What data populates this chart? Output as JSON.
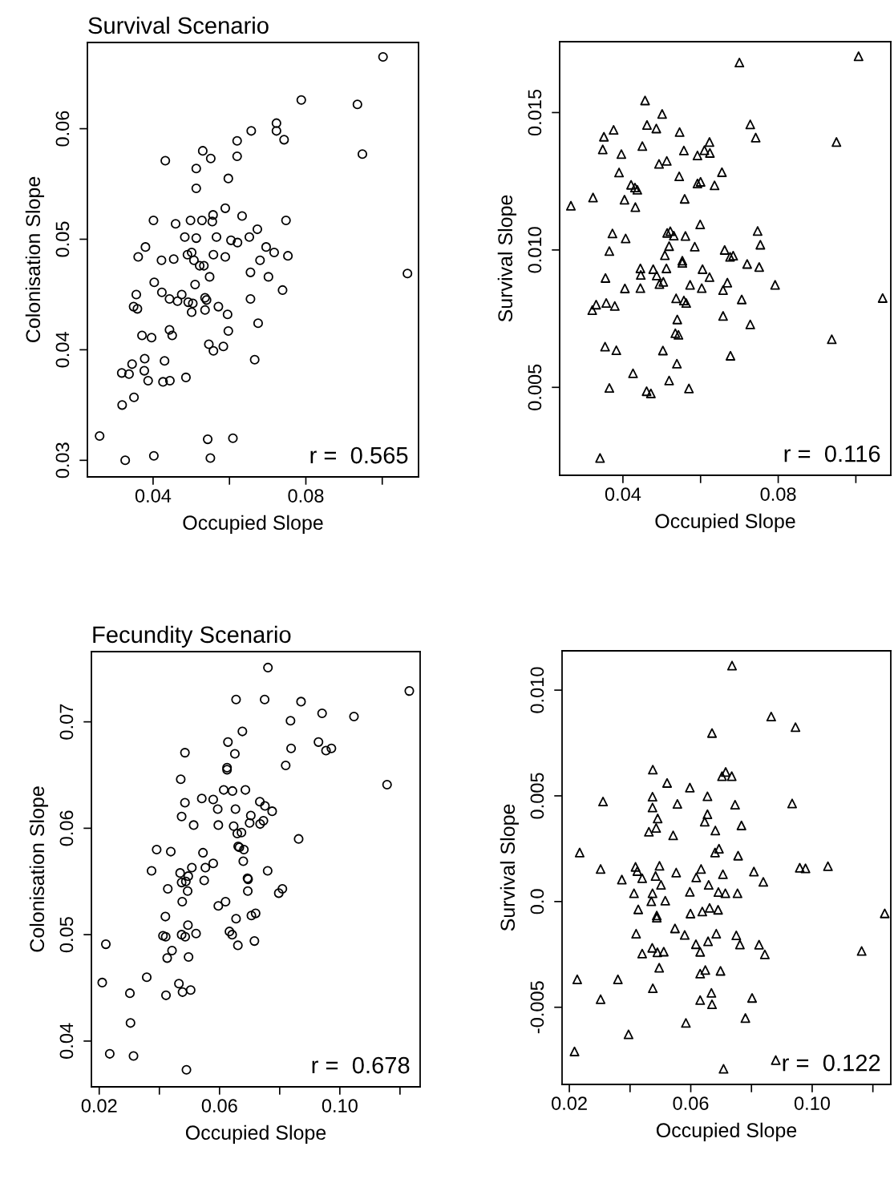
{
  "chart_data": [
    {
      "type": "scatter",
      "title": "Survival Scenario",
      "xlabel": "Occupied Slope",
      "ylabel": "Colonisation Slope",
      "marker": "circle",
      "annotations": [
        "r =  0.565"
      ],
      "xlim": [
        0.0228,
        0.1095
      ],
      "ylim": [
        0.0285,
        0.0678
      ],
      "xticks": [
        {
          "value": 0.04,
          "label": "0.04"
        },
        {
          "value": 0.06,
          "label": null
        },
        {
          "value": 0.08,
          "label": "0.08"
        },
        {
          "value": 0.1,
          "label": null
        }
      ],
      "yticks": [
        {
          "value": 0.03,
          "label": "0.03"
        },
        {
          "value": 0.04,
          "label": "0.04"
        },
        {
          "value": 0.05,
          "label": "0.05"
        },
        {
          "value": 0.06,
          "label": "0.06"
        }
      ],
      "series": [
        {
          "color": "#000000",
          "x": [
            0.1002,
            0.0788,
            0.0935,
            0.0723,
            0.0723,
            0.0657,
            0.0743,
            0.0948,
            0.062,
            0.062,
            0.053,
            0.0551,
            0.0432,
            0.0513,
            0.0597,
            0.0513,
            0.0589,
            0.0633,
            0.0557,
            0.0555,
            0.0528,
            0.0498,
            0.0459,
            0.0401,
            0.0748,
            0.0673,
            0.0652,
            0.0483,
            0.0513,
            0.0566,
            0.0604,
            0.0621,
            0.038,
            0.0696,
            0.0717,
            0.0753,
            0.0361,
            0.0422,
            0.0454,
            0.049,
            0.0501,
            0.0507,
            0.0558,
            0.0589,
            0.0522,
            0.0533,
            0.068,
            0.0655,
            0.0548,
            0.0702,
            0.1066,
            0.0403,
            0.051,
            0.0739,
            0.0356,
            0.0423,
            0.0443,
            0.0464,
            0.0475,
            0.0492,
            0.0504,
            0.0536,
            0.054,
            0.0571,
            0.0655,
            0.0349,
            0.0359,
            0.0501,
            0.0536,
            0.0595,
            0.0675,
            0.0371,
            0.0396,
            0.0443,
            0.045,
            0.0597,
            0.0546,
            0.0558,
            0.0584,
            0.0378,
            0.043,
            0.0666,
            0.0345,
            0.0318,
            0.0337,
            0.0377,
            0.0387,
            0.0426,
            0.0444,
            0.0486,
            0.035,
            0.0319,
            0.026,
            0.0543,
            0.0609,
            0.0327,
            0.0402,
            0.055
          ],
          "values": [
            0.0665,
            0.0626,
            0.0622,
            0.0605,
            0.0598,
            0.0598,
            0.059,
            0.0577,
            0.0589,
            0.0575,
            0.058,
            0.0573,
            0.0571,
            0.0564,
            0.0555,
            0.0546,
            0.0528,
            0.0521,
            0.0522,
            0.0516,
            0.0517,
            0.0517,
            0.0514,
            0.0517,
            0.0517,
            0.0509,
            0.0502,
            0.0502,
            0.0501,
            0.0502,
            0.0499,
            0.0497,
            0.0493,
            0.0493,
            0.0488,
            0.0485,
            0.0484,
            0.0481,
            0.0482,
            0.0486,
            0.0488,
            0.0481,
            0.0486,
            0.0484,
            0.0476,
            0.0476,
            0.0481,
            0.047,
            0.0466,
            0.0466,
            0.0469,
            0.0461,
            0.0459,
            0.0454,
            0.045,
            0.0452,
            0.0446,
            0.0444,
            0.045,
            0.0443,
            0.0442,
            0.0447,
            0.0445,
            0.0439,
            0.0446,
            0.0439,
            0.0437,
            0.0434,
            0.0436,
            0.0432,
            0.0424,
            0.0413,
            0.0411,
            0.0418,
            0.0413,
            0.0417,
            0.0405,
            0.0399,
            0.0403,
            0.0392,
            0.039,
            0.0391,
            0.0387,
            0.0379,
            0.0378,
            0.0381,
            0.0372,
            0.0371,
            0.0372,
            0.0375,
            0.0357,
            0.035,
            0.0322,
            0.0319,
            0.032,
            0.03,
            0.0304,
            0.0302
          ]
        }
      ]
    },
    {
      "type": "scatter",
      "xlabel": "Occupied Slope",
      "ylabel": "Survival Slope",
      "marker": "triangle",
      "annotations": [
        "r =  0.116"
      ],
      "xlim": [
        0.0237,
        0.109
      ],
      "ylim": [
        0.0018,
        0.01758
      ],
      "xticks": [
        {
          "value": 0.04,
          "label": "0.04"
        },
        {
          "value": 0.06,
          "label": null
        },
        {
          "value": 0.08,
          "label": "0.08"
        },
        {
          "value": 0.1,
          "label": null
        }
      ],
      "yticks": [
        {
          "value": 0.005,
          "label": "0.005"
        },
        {
          "value": 0.01,
          "label": "0.010"
        },
        {
          "value": 0.015,
          "label": "0.015"
        }
      ],
      "series": [
        {
          "color": "#000000",
          "x": [
            0.1007,
            0.07,
            0.0457,
            0.0501,
            0.0462,
            0.0486,
            0.0376,
            0.0351,
            0.0546,
            0.0728,
            0.0742,
            0.095,
            0.0623,
            0.0348,
            0.045,
            0.0557,
            0.061,
            0.0624,
            0.0592,
            0.0396,
            0.0513,
            0.0493,
            0.039,
            0.0655,
            0.0545,
            0.0421,
            0.0431,
            0.0437,
            0.0592,
            0.06,
            0.0636,
            0.0323,
            0.0404,
            0.0559,
            0.0266,
            0.0432,
            0.0599,
            0.0373,
            0.0407,
            0.0514,
            0.0522,
            0.0531,
            0.0561,
            0.0747,
            0.0754,
            0.0365,
            0.0519,
            0.0585,
            0.0662,
            0.0676,
            0.0684,
            0.0508,
            0.0553,
            0.0553,
            0.072,
            0.0751,
            0.0445,
            0.0478,
            0.0512,
            0.0605,
            0.0446,
            0.0487,
            0.0623,
            0.0355,
            0.0504,
            0.0494,
            0.0573,
            0.0669,
            0.0792,
            0.0405,
            0.0445,
            0.0603,
            0.0658,
            0.0537,
            0.0557,
            0.0563,
            0.0706,
            0.1069,
            0.0331,
            0.0321,
            0.0357,
            0.0379,
            0.0658,
            0.054,
            0.0728,
            0.0535,
            0.0543,
            0.0938,
            0.0354,
            0.0383,
            0.0503,
            0.0677,
            0.0539,
            0.0426,
            0.0519,
            0.0365,
            0.057,
            0.0461,
            0.0472,
            0.0341
          ],
          "values": [
            0.01705,
            0.01682,
            0.01544,
            0.01495,
            0.01455,
            0.01442,
            0.01437,
            0.01412,
            0.01429,
            0.01457,
            0.01409,
            0.01393,
            0.01393,
            0.01366,
            0.01378,
            0.01362,
            0.01363,
            0.01353,
            0.01344,
            0.01349,
            0.01324,
            0.01313,
            0.01282,
            0.01283,
            0.01268,
            0.01237,
            0.01227,
            0.01219,
            0.01242,
            0.01248,
            0.01235,
            0.01191,
            0.01183,
            0.01186,
            0.01161,
            0.01156,
            0.01093,
            0.0106,
            0.01042,
            0.01062,
            0.01068,
            0.01052,
            0.01051,
            0.01069,
            0.01019,
            0.00996,
            0.01014,
            0.01012,
            0.01,
            0.00975,
            0.00979,
            0.00981,
            0.00961,
            0.00953,
            0.00949,
            0.00938,
            0.00933,
            0.0093,
            0.00933,
            0.0093,
            0.00909,
            0.00907,
            0.00901,
            0.00898,
            0.00884,
            0.00876,
            0.00873,
            0.00881,
            0.00873,
            0.0086,
            0.00861,
            0.00861,
            0.00854,
            0.00824,
            0.00816,
            0.00807,
            0.0082,
            0.00825,
            0.00801,
            0.00781,
            0.00807,
            0.00796,
            0.0076,
            0.00747,
            0.00729,
            0.00697,
            0.00691,
            0.00675,
            0.00648,
            0.00635,
            0.00634,
            0.00615,
            0.00586,
            0.00551,
            0.00525,
            0.00498,
            0.00496,
            0.00486,
            0.00478,
            0.00243
          ]
        }
      ]
    },
    {
      "type": "scatter",
      "title": "Fecundity Scenario",
      "xlabel": "Occupied Slope",
      "ylabel": "Colonisation Slope",
      "marker": "circle",
      "annotations": [
        "r =  0.678"
      ],
      "xlim": [
        0.0174,
        0.1267
      ],
      "ylim": [
        0.0357,
        0.0766
      ],
      "xticks": [
        {
          "value": 0.02,
          "label": "0.02"
        },
        {
          "value": 0.04,
          "label": null
        },
        {
          "value": 0.06,
          "label": "0.06"
        },
        {
          "value": 0.08,
          "label": null
        },
        {
          "value": 0.1,
          "label": "0.10"
        },
        {
          "value": 0.12,
          "label": null
        }
      ],
      "yticks": [
        {
          "value": 0.04,
          "label": "0.04"
        },
        {
          "value": 0.05,
          "label": "0.05"
        },
        {
          "value": 0.06,
          "label": "0.06"
        },
        {
          "value": 0.07,
          "label": "0.07"
        }
      ],
      "series": [
        {
          "color": "#000000",
          "x": [
            0.0761,
            0.1231,
            0.0655,
            0.075,
            0.0871,
            0.0941,
            0.1047,
            0.0836,
            0.0676,
            0.0628,
            0.0929,
            0.0954,
            0.0972,
            0.0838,
            0.0485,
            0.0651,
            0.082,
            0.0625,
            0.0625,
            0.1157,
            0.0471,
            0.0614,
            0.0643,
            0.0686,
            0.0541,
            0.0579,
            0.0485,
            0.0734,
            0.0751,
            0.0594,
            0.0653,
            0.0775,
            0.0474,
            0.0704,
            0.0746,
            0.0735,
            0.07,
            0.0514,
            0.0596,
            0.0647,
            0.0659,
            0.0673,
            0.0863,
            0.0391,
            0.0438,
            0.0545,
            0.0662,
            0.0666,
            0.0681,
            0.0579,
            0.0679,
            0.0374,
            0.0508,
            0.0553,
            0.076,
            0.0469,
            0.0496,
            0.0474,
            0.0488,
            0.0549,
            0.0693,
            0.0695,
            0.0428,
            0.0494,
            0.0694,
            0.0797,
            0.0809,
            0.0476,
            0.0596,
            0.062,
            0.042,
            0.0655,
            0.0706,
            0.072,
            0.0495,
            0.0412,
            0.0421,
            0.0474,
            0.0486,
            0.0522,
            0.0633,
            0.0642,
            0.0661,
            0.0716,
            0.0222,
            0.0442,
            0.0426,
            0.0497,
            0.0358,
            0.021,
            0.0465,
            0.0477,
            0.0504,
            0.0302,
            0.0422,
            0.0304,
            0.0235,
            0.0314,
            0.049
          ],
          "values": [
            0.0751,
            0.0729,
            0.0721,
            0.0721,
            0.0719,
            0.0708,
            0.0705,
            0.0701,
            0.0691,
            0.0681,
            0.0681,
            0.0673,
            0.0675,
            0.0675,
            0.0671,
            0.067,
            0.0659,
            0.0657,
            0.0655,
            0.0641,
            0.0646,
            0.0636,
            0.0635,
            0.0636,
            0.0628,
            0.0627,
            0.0624,
            0.0625,
            0.0621,
            0.0618,
            0.0618,
            0.0616,
            0.0611,
            0.0612,
            0.0607,
            0.0604,
            0.0605,
            0.0603,
            0.0603,
            0.0602,
            0.0595,
            0.0596,
            0.059,
            0.058,
            0.0578,
            0.0577,
            0.0583,
            0.0582,
            0.058,
            0.0567,
            0.0569,
            0.056,
            0.0563,
            0.0563,
            0.056,
            0.0558,
            0.0555,
            0.0549,
            0.055,
            0.0551,
            0.0553,
            0.0552,
            0.0543,
            0.0541,
            0.0541,
            0.0539,
            0.0543,
            0.0531,
            0.0527,
            0.0531,
            0.0517,
            0.0515,
            0.0518,
            0.052,
            0.0509,
            0.0499,
            0.0498,
            0.05,
            0.0498,
            0.0501,
            0.0503,
            0.05,
            0.049,
            0.0494,
            0.0491,
            0.0485,
            0.0478,
            0.0479,
            0.046,
            0.0455,
            0.0454,
            0.0446,
            0.0448,
            0.0445,
            0.0443,
            0.0417,
            0.0388,
            0.0386,
            0.0373
          ]
        }
      ]
    },
    {
      "type": "scatter",
      "xlabel": "Occupied Slope",
      "ylabel": "Survival Slope",
      "marker": "triangle",
      "annotations": [
        "r =  0.122"
      ],
      "xlim": [
        0.0176,
        0.1259
      ],
      "ylim": [
        -0.00865,
        0.01186
      ],
      "xticks": [
        {
          "value": 0.02,
          "label": "0.02"
        },
        {
          "value": 0.04,
          "label": null
        },
        {
          "value": 0.06,
          "label": "0.06"
        },
        {
          "value": 0.08,
          "label": null
        },
        {
          "value": 0.1,
          "label": "0.10"
        },
        {
          "value": 0.12,
          "label": null
        }
      ],
      "yticks": [
        {
          "value": -0.005,
          "label": "-0.005"
        },
        {
          "value": 0.0,
          "label": "0.0"
        },
        {
          "value": 0.005,
          "label": "0.005"
        },
        {
          "value": 0.01,
          "label": "0.010"
        }
      ],
      "series": [
        {
          "color": "#000000",
          "x": [
            0.0736,
            0.0865,
            0.0945,
            0.067,
            0.0475,
            0.0715,
            0.0703,
            0.0735,
            0.0522,
            0.0597,
            0.0311,
            0.0474,
            0.0655,
            0.0556,
            0.0746,
            0.0934,
            0.0474,
            0.0655,
            0.0646,
            0.0491,
            0.0486,
            0.0462,
            0.0681,
            0.0767,
            0.0542,
            0.0234,
            0.0693,
            0.068,
            0.0756,
            0.0303,
            0.0418,
            0.0424,
            0.044,
            0.0373,
            0.0497,
            0.0484,
            0.0502,
            0.0552,
            0.0634,
            0.0618,
            0.0706,
            0.0808,
            0.0839,
            0.0959,
            0.0978,
            0.1052,
            0.0413,
            0.0474,
            0.047,
            0.0516,
            0.0597,
            0.0659,
            0.0691,
            0.0714,
            0.0754,
            0.0427,
            0.0488,
            0.0488,
            0.0599,
            0.0638,
            0.0662,
            0.069,
            0.1239,
            0.042,
            0.0548,
            0.058,
            0.0684,
            0.075,
            0.0657,
            0.0617,
            0.0762,
            0.0825,
            0.0473,
            0.044,
            0.049,
            0.0511,
            0.0631,
            0.0844,
            0.1163,
            0.0496,
            0.0648,
            0.0631,
            0.0698,
            0.0226,
            0.036,
            0.0475,
            0.0668,
            0.0303,
            0.0631,
            0.0802,
            0.067,
            0.078,
            0.0584,
            0.0395,
            0.0217,
            0.0708,
            0.088
          ],
          "values": [
            0.01116,
            0.00875,
            0.00825,
            0.00797,
            0.00624,
            0.00613,
            0.00593,
            0.00593,
            0.00561,
            0.00539,
            0.00473,
            0.00496,
            0.00498,
            0.00462,
            0.00458,
            0.00464,
            0.00445,
            0.00413,
            0.00378,
            0.00393,
            0.00348,
            0.0033,
            0.00336,
            0.0036,
            0.00313,
            0.00232,
            0.0025,
            0.00232,
            0.00217,
            0.00154,
            0.00164,
            0.00144,
            0.0011,
            0.00104,
            0.00169,
            0.00121,
            0.00079,
            0.00137,
            0.00154,
            0.00114,
            0.00129,
            0.00142,
            0.00093,
            0.0016,
            0.00157,
            0.00167,
            0.00039,
            0.00039,
            1e-05,
            4e-05,
            0.00046,
            0.00079,
            0.00045,
            0.00039,
            0.00039,
            -0.00037,
            -0.00066,
            -0.00076,
            -0.00057,
            -0.00047,
            -0.0003,
            -0.00039,
            -0.00056,
            -0.00152,
            -0.00127,
            -0.00158,
            -0.00152,
            -0.0016,
            -0.00188,
            -0.00202,
            -0.00203,
            -0.00204,
            -0.00219,
            -0.00246,
            -0.0024,
            -0.00237,
            -0.00238,
            -0.0025,
            -0.00234,
            -0.00313,
            -0.00324,
            -0.00341,
            -0.00328,
            -0.00368,
            -0.00368,
            -0.0041,
            -0.00432,
            -0.00462,
            -0.00466,
            -0.00456,
            -0.00486,
            -0.00551,
            -0.00574,
            -0.00628,
            -0.00709,
            -0.00791,
            -0.0075
          ]
        }
      ]
    }
  ]
}
